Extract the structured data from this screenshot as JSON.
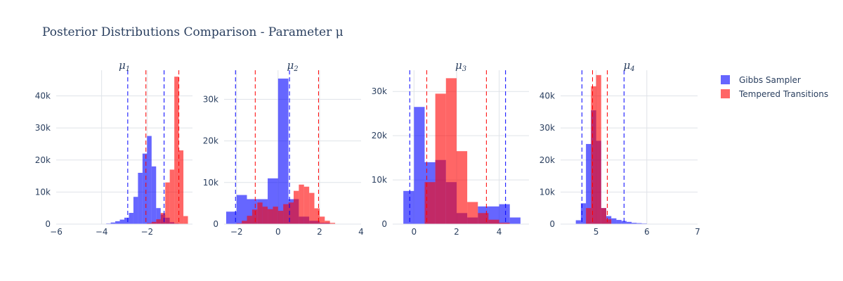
{
  "chart_data": {
    "type": "bar",
    "title": "Posterior Distributions Comparison - Parameter μ",
    "legend": {
      "placement": "top-right",
      "entries": [
        {
          "name": "Gibbs Sampler",
          "color": "#0000ff"
        },
        {
          "name": "Tempered Transitions",
          "color": "#ff0000"
        }
      ]
    },
    "series_colors": {
      "gibbs": "#0000ff",
      "tempered": "#ff0000"
    },
    "opacity": 0.6,
    "subplots": [
      {
        "subtitle": "μ1",
        "xlim": [
          -6,
          0
        ],
        "ylim": [
          0,
          48000
        ],
        "xticks": [
          -6,
          -4,
          -2
        ],
        "xtick_labels": [
          "−6",
          "−4",
          "−2"
        ],
        "yticks": [
          0,
          10000,
          20000,
          30000,
          40000
        ],
        "ytick_labels": [
          "0",
          "10k",
          "20k",
          "30k",
          "40k"
        ],
        "series": [
          {
            "name": "Gibbs Sampler",
            "bin_width": 0.2,
            "bins": [
              [
                -3.8,
                200
              ],
              [
                -3.6,
                500
              ],
              [
                -3.4,
                900
              ],
              [
                -3.2,
                1400
              ],
              [
                -3.0,
                2000
              ],
              [
                -2.8,
                3500
              ],
              [
                -2.6,
                8500
              ],
              [
                -2.4,
                16000
              ],
              [
                -2.2,
                22000
              ],
              [
                -2.0,
                27500
              ],
              [
                -1.8,
                18000
              ],
              [
                -1.6,
                5000
              ],
              [
                -1.4,
                3000
              ],
              [
                -1.2,
                2000
              ],
              [
                -1.0,
                600
              ],
              [
                -0.8,
                200
              ]
            ]
          },
          {
            "name": "Tempered Transitions",
            "bin_width": 0.2,
            "bins": [
              [
                -2.0,
                300
              ],
              [
                -1.8,
                700
              ],
              [
                -1.6,
                1500
              ],
              [
                -1.4,
                3500
              ],
              [
                -1.2,
                13000
              ],
              [
                -1.0,
                17000
              ],
              [
                -0.8,
                46000
              ],
              [
                -0.6,
                23000
              ],
              [
                -0.4,
                2500
              ]
            ]
          }
        ],
        "gibbs_lines": [
          -2.85,
          -1.25
        ],
        "tempered_lines": [
          -2.05,
          -0.6
        ]
      },
      {
        "subtitle": "μ2",
        "xlim": [
          -2.6,
          4
        ],
        "ylim": [
          0,
          37000
        ],
        "xticks": [
          -2,
          0,
          2,
          4
        ],
        "xtick_labels": [
          "−2",
          "0",
          "2",
          "4"
        ],
        "yticks": [
          0,
          10000,
          20000,
          30000
        ],
        "ytick_labels": [
          "0",
          "10k",
          "20k",
          "30k"
        ],
        "series": [
          {
            "name": "Gibbs Sampler",
            "bin_width": 0.5,
            "bins": [
              [
                -2.5,
                3000
              ],
              [
                -2.0,
                7000
              ],
              [
                -1.5,
                6000
              ],
              [
                -1.0,
                6000
              ],
              [
                -0.5,
                11000
              ],
              [
                0.0,
                35000
              ],
              [
                0.5,
                6000
              ],
              [
                1.0,
                1800
              ],
              [
                1.5,
                800
              ],
              [
                2.0,
                300
              ]
            ]
          },
          {
            "name": "Tempered Transitions",
            "bin_width": 0.25,
            "bins": [
              [
                -2.0,
                200
              ],
              [
                -1.75,
                800
              ],
              [
                -1.5,
                2000
              ],
              [
                -1.25,
                3500
              ],
              [
                -1.0,
                5200
              ],
              [
                -0.75,
                4200
              ],
              [
                -0.5,
                3600
              ],
              [
                -0.25,
                4200
              ],
              [
                0.0,
                3200
              ],
              [
                0.25,
                4800
              ],
              [
                0.5,
                5200
              ],
              [
                0.75,
                8000
              ],
              [
                1.0,
                9500
              ],
              [
                1.25,
                9000
              ],
              [
                1.5,
                7500
              ],
              [
                1.75,
                3800
              ],
              [
                2.0,
                1800
              ],
              [
                2.25,
                800
              ],
              [
                2.5,
                300
              ]
            ]
          }
        ],
        "gibbs_lines": [
          -2.05,
          0.55
        ],
        "tempered_lines": [
          -1.1,
          1.95
        ]
      },
      {
        "subtitle": "μ3",
        "xlim": [
          -1,
          5.4
        ],
        "ylim": [
          0,
          34800
        ],
        "xticks": [
          0,
          2,
          4
        ],
        "xtick_labels": [
          "0",
          "2",
          "4"
        ],
        "yticks": [
          0,
          10000,
          20000,
          30000
        ],
        "ytick_labels": [
          "0",
          "10k",
          "20k",
          "30k"
        ],
        "series": [
          {
            "name": "Gibbs Sampler",
            "bin_width": 0.5,
            "bins": [
              [
                -0.5,
                7500
              ],
              [
                0.0,
                26500
              ],
              [
                0.5,
                14000
              ],
              [
                1.0,
                14500
              ],
              [
                1.5,
                9500
              ],
              [
                2.0,
                2500
              ],
              [
                2.5,
                1500
              ],
              [
                3.0,
                4000
              ],
              [
                3.5,
                4000
              ],
              [
                4.0,
                4500
              ],
              [
                4.5,
                1500
              ]
            ]
          },
          {
            "name": "Tempered Transitions",
            "bin_width": 0.5,
            "bins": [
              [
                0.5,
                9500
              ],
              [
                1.0,
                29500
              ],
              [
                1.5,
                33000
              ],
              [
                2.0,
                16500
              ],
              [
                2.5,
                5000
              ],
              [
                3.0,
                2500
              ],
              [
                3.5,
                1000
              ],
              [
                4.0,
                300
              ]
            ]
          }
        ],
        "gibbs_lines": [
          -0.2,
          4.3
        ],
        "tempered_lines": [
          0.6,
          3.4
        ]
      },
      {
        "subtitle": "μ4",
        "xlim": [
          4.3,
          7
        ],
        "ylim": [
          0,
          48000
        ],
        "xticks": [
          5,
          6,
          7
        ],
        "xtick_labels": [
          "5",
          "6",
          "7"
        ],
        "yticks": [
          0,
          10000,
          20000,
          30000,
          40000
        ],
        "ytick_labels": [
          "0",
          "10k",
          "20k",
          "30k",
          "40k"
        ],
        "series": [
          {
            "name": "Gibbs Sampler",
            "bin_width": 0.1,
            "bins": [
              [
                4.6,
                1200
              ],
              [
                4.7,
                6500
              ],
              [
                4.8,
                25000
              ],
              [
                4.9,
                35500
              ],
              [
                5.0,
                26000
              ],
              [
                5.1,
                5000
              ],
              [
                5.2,
                2500
              ],
              [
                5.3,
                1800
              ],
              [
                5.4,
                1300
              ],
              [
                5.5,
                1000
              ],
              [
                5.6,
                700
              ],
              [
                5.7,
                400
              ],
              [
                5.8,
                300
              ],
              [
                5.9,
                200
              ],
              [
                6.0,
                100
              ]
            ]
          },
          {
            "name": "Tempered Transitions",
            "bin_width": 0.1,
            "bins": [
              [
                4.8,
                5000
              ],
              [
                4.9,
                43000
              ],
              [
                5.0,
                46500
              ],
              [
                5.1,
                5000
              ],
              [
                5.2,
                1500
              ]
            ]
          }
        ],
        "gibbs_lines": [
          4.72,
          5.55
        ],
        "tempered_lines": [
          4.93,
          5.22
        ]
      }
    ]
  }
}
